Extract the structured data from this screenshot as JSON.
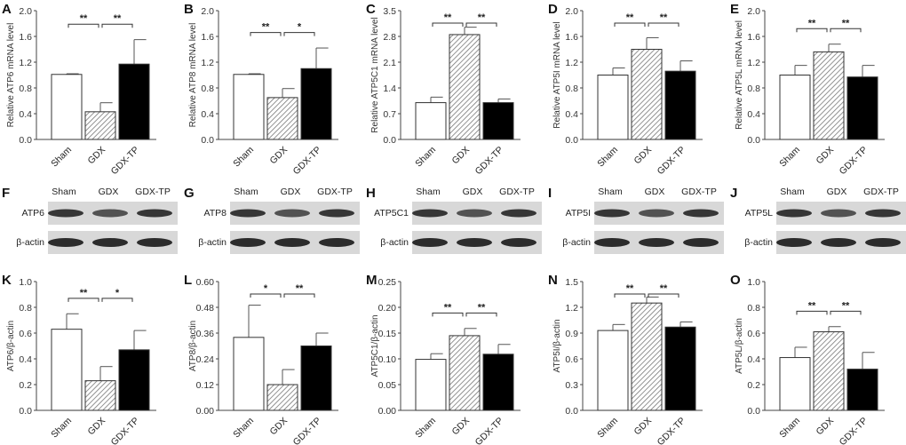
{
  "groups": [
    "Sham",
    "GDX",
    "GDX-TP"
  ],
  "colors": {
    "sham": "#ffffff",
    "gdx_hatch": "#888888",
    "gdx_tp": "#000000",
    "axis": "#444444"
  },
  "chart_data": [
    {
      "panel": "A",
      "type": "bar",
      "ylabel": "Relative ATP6 mRNA level",
      "ylim": [
        0,
        2.0
      ],
      "ticks": [
        "0.0",
        "0.4",
        "0.8",
        "1.2",
        "1.6",
        "2.0"
      ],
      "categories": [
        "Sham",
        "GDX",
        "GDX-TP"
      ],
      "values": [
        1.01,
        0.43,
        1.17
      ],
      "errors": [
        0.01,
        0.14,
        0.38
      ],
      "significance": [
        "**",
        "**"
      ]
    },
    {
      "panel": "B",
      "type": "bar",
      "ylabel": "Relative ATP8 mRNA level",
      "ylim": [
        0,
        2.0
      ],
      "ticks": [
        "0.0",
        "0.4",
        "0.8",
        "1.2",
        "1.6",
        "2.0"
      ],
      "categories": [
        "Sham",
        "GDX",
        "GDX-TP"
      ],
      "values": [
        1.01,
        0.65,
        1.1
      ],
      "errors": [
        0.01,
        0.14,
        0.32
      ],
      "significance": [
        "**",
        "*"
      ]
    },
    {
      "panel": "C",
      "type": "bar",
      "ylabel": "Relative ATP5C1 mRNA level",
      "ylim": [
        0,
        3.5
      ],
      "ticks": [
        "0.0",
        "0.7",
        "1.4",
        "2.1",
        "2.8",
        "3.5"
      ],
      "categories": [
        "Sham",
        "GDX",
        "GDX-TP"
      ],
      "values": [
        1.0,
        2.85,
        1.0
      ],
      "errors": [
        0.15,
        0.2,
        0.1
      ],
      "significance": [
        "**",
        "**"
      ]
    },
    {
      "panel": "D",
      "type": "bar",
      "ylabel": "Relative ATP5I mRNA level",
      "ylim": [
        0,
        2.0
      ],
      "ticks": [
        "0.0",
        "0.4",
        "0.8",
        "1.2",
        "1.6",
        "2.0"
      ],
      "categories": [
        "Sham",
        "GDX",
        "GDX-TP"
      ],
      "values": [
        1.0,
        1.4,
        1.06
      ],
      "errors": [
        0.11,
        0.18,
        0.16
      ],
      "significance": [
        "**",
        "**"
      ]
    },
    {
      "panel": "E",
      "type": "bar",
      "ylabel": "Relative ATP5L mRNA level",
      "ylim": [
        0,
        2.0
      ],
      "ticks": [
        "0.0",
        "0.4",
        "0.8",
        "1.2",
        "1.6",
        "2.0"
      ],
      "categories": [
        "Sham",
        "GDX",
        "GDX-TP"
      ],
      "values": [
        1.0,
        1.36,
        0.97
      ],
      "errors": [
        0.15,
        0.12,
        0.18
      ],
      "significance": [
        "**",
        "**"
      ]
    },
    {
      "panel": "K",
      "type": "bar",
      "ylabel": "ATP6/β-actin",
      "ylim": [
        0,
        1.0
      ],
      "ticks": [
        "0.0",
        "0.2",
        "0.4",
        "0.6",
        "0.8",
        "1.0"
      ],
      "categories": [
        "Sham",
        "GDX",
        "GDX-TP"
      ],
      "values": [
        0.63,
        0.23,
        0.47
      ],
      "errors": [
        0.12,
        0.11,
        0.15
      ],
      "significance": [
        "**",
        "*"
      ]
    },
    {
      "panel": "L",
      "type": "bar",
      "ylabel": "ATP8/β-actin",
      "ylim": [
        0,
        0.6
      ],
      "ticks": [
        "0.00",
        "0.12",
        "0.24",
        "0.36",
        "0.48",
        "0.60"
      ],
      "categories": [
        "Sham",
        "GDX",
        "GDX-TP"
      ],
      "values": [
        0.34,
        0.12,
        0.3
      ],
      "errors": [
        0.15,
        0.07,
        0.06
      ],
      "significance": [
        "*",
        "**"
      ]
    },
    {
      "panel": "M",
      "type": "bar",
      "ylabel": "ATP5C1/β-actin",
      "ylim": [
        0,
        0.25
      ],
      "ticks": [
        "0.00",
        "0.05",
        "0.10",
        "0.15",
        "0.20",
        "0.25"
      ],
      "categories": [
        "Sham",
        "GDX",
        "GDX-TP"
      ],
      "values": [
        0.099,
        0.145,
        0.109
      ],
      "errors": [
        0.011,
        0.014,
        0.019
      ],
      "significance": [
        "**",
        "**"
      ]
    },
    {
      "panel": "N",
      "type": "bar",
      "ylabel": "ATP5I/β-actin",
      "ylim": [
        0,
        1.5
      ],
      "ticks": [
        "0.0",
        "0.3",
        "0.6",
        "0.9",
        "1.2",
        "1.5"
      ],
      "categories": [
        "Sham",
        "GDX",
        "GDX-TP"
      ],
      "values": [
        0.93,
        1.25,
        0.97
      ],
      "errors": [
        0.07,
        0.07,
        0.06
      ],
      "significance": [
        "**",
        "**"
      ]
    },
    {
      "panel": "O",
      "type": "bar",
      "ylabel": "ATP5L/β-actin",
      "ylim": [
        0,
        1.0
      ],
      "ticks": [
        "0.0",
        "0.2",
        "0.4",
        "0.6",
        "0.8",
        "1.0"
      ],
      "categories": [
        "Sham",
        "GDX",
        "GDX-TP"
      ],
      "values": [
        0.41,
        0.61,
        0.32
      ],
      "errors": [
        0.08,
        0.04,
        0.13
      ],
      "significance": [
        "**",
        "**"
      ]
    }
  ],
  "blots": [
    {
      "panel": "F",
      "target": "ATP6",
      "control": "β-actin"
    },
    {
      "panel": "G",
      "target": "ATP8",
      "control": "β-actin"
    },
    {
      "panel": "H",
      "target": "ATP5C1",
      "control": "β-actin"
    },
    {
      "panel": "I",
      "target": "ATP5I",
      "control": "β-actin"
    },
    {
      "panel": "J",
      "target": "ATP5L",
      "control": "β-actin"
    }
  ]
}
